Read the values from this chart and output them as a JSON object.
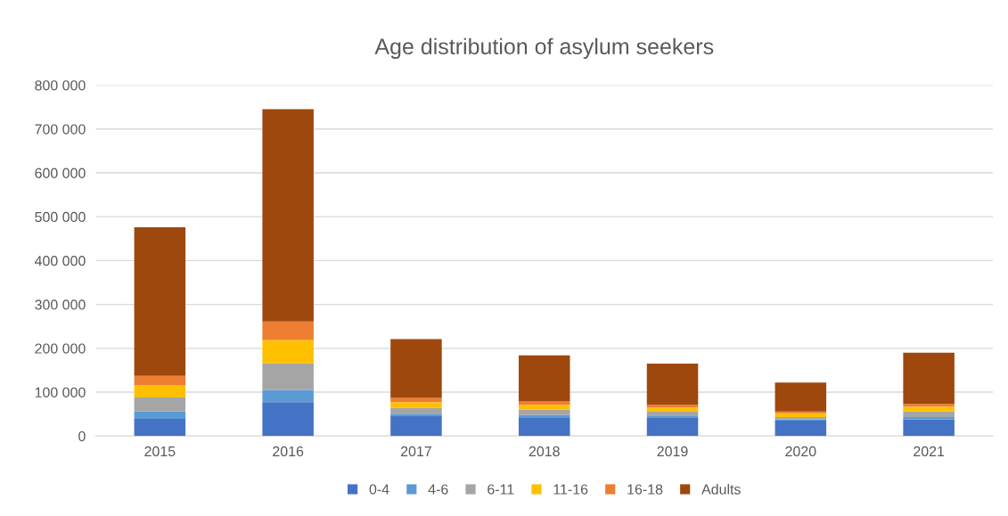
{
  "chart_data": {
    "type": "bar",
    "stacked": true,
    "title": "Age distribution of asylum seekers",
    "categories": [
      "2015",
      "2016",
      "2017",
      "2018",
      "2019",
      "2020",
      "2021"
    ],
    "series": [
      {
        "name": "0-4",
        "color": "#4472c4",
        "values": [
          39000,
          77000,
          45000,
          41000,
          41000,
          35000,
          38000
        ]
      },
      {
        "name": "4-6",
        "color": "#5b9bd5",
        "values": [
          17000,
          28000,
          6000,
          7000,
          4000,
          3000,
          5000
        ]
      },
      {
        "name": "6-11",
        "color": "#a5a5a5",
        "values": [
          32000,
          61000,
          13000,
          12000,
          12000,
          5000,
          13000
        ]
      },
      {
        "name": "11-16",
        "color": "#ffc000",
        "values": [
          28000,
          53000,
          13000,
          11000,
          8000,
          9000,
          11000
        ]
      },
      {
        "name": "16-18",
        "color": "#ed7d31",
        "values": [
          21000,
          42000,
          10000,
          8000,
          6000,
          4000,
          6000
        ]
      },
      {
        "name": "Adults",
        "color": "#9e480e",
        "values": [
          339000,
          484000,
          134000,
          105000,
          94000,
          66000,
          117000
        ]
      }
    ],
    "ylim": [
      0,
      800000
    ],
    "yticks": [
      {
        "value": 0,
        "label": "0"
      },
      {
        "value": 100000,
        "label": "100 000"
      },
      {
        "value": 200000,
        "label": "200 000"
      },
      {
        "value": 300000,
        "label": "300 000"
      },
      {
        "value": 400000,
        "label": "400 000"
      },
      {
        "value": 500000,
        "label": "500 000"
      },
      {
        "value": 600000,
        "label": "600 000"
      },
      {
        "value": 700000,
        "label": "700 000"
      },
      {
        "value": 800000,
        "label": "800 000"
      }
    ],
    "grid": "y",
    "legend": "bottom"
  }
}
